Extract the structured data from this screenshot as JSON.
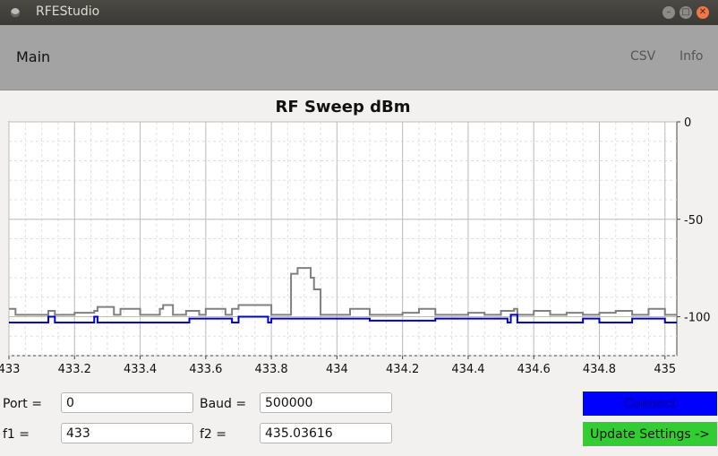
{
  "window": {
    "title": "RFEStudio"
  },
  "menu": {
    "main": "Main",
    "csv": "CSV",
    "info": "Info"
  },
  "fields": {
    "port_label": "Port =",
    "port_value": "0",
    "baud_label": "Baud =",
    "baud_value": "500000",
    "f1_label": "f1 =",
    "f1_value": "433",
    "f2_label": "f2 =",
    "f2_value": "435.03616"
  },
  "buttons": {
    "connect": "Connect",
    "update": "Update Settings ->"
  },
  "colors": {
    "connect": "#0000ff",
    "update": "#33cc33",
    "current": "#0000cc",
    "max": "#808080"
  },
  "chart_data": {
    "type": "line",
    "title": "RF Sweep dBm",
    "xlim": [
      433,
      435.03616
    ],
    "ylim": [
      -120,
      0
    ],
    "x_ticks": [
      433,
      433.2,
      433.4,
      433.6,
      433.8,
      434,
      434.2,
      434.4,
      434.6,
      434.8,
      435
    ],
    "x_tick_labels": [
      "433",
      "433.2",
      "433.4",
      "433.6",
      "433.8",
      "434",
      "434.2",
      "434.4",
      "434.6",
      "434.8",
      "435"
    ],
    "y_ticks": [
      0,
      -50,
      -100
    ],
    "y_tick_labels": [
      "0",
      "-50",
      "-100"
    ],
    "y_axis_side": "right",
    "grid": true,
    "series": [
      {
        "color": "#808080",
        "x": [
          433,
          433.02,
          433.1,
          433.12,
          433.14,
          433.2,
          433.26,
          433.27,
          433.32,
          433.34,
          433.4,
          433.46,
          433.47,
          433.5,
          433.54,
          433.58,
          433.6,
          433.66,
          433.68,
          433.7,
          433.8,
          433.85,
          433.86,
          433.88,
          433.92,
          433.93,
          433.95,
          434,
          434.04,
          434.1,
          434.2,
          434.25,
          434.3,
          434.4,
          434.45,
          434.5,
          434.54,
          434.55,
          434.6,
          434.65,
          434.7,
          434.75,
          434.8,
          434.85,
          434.9,
          434.95,
          435,
          435.03616
        ],
        "y": [
          -96,
          -99,
          -99,
          -97,
          -99,
          -98,
          -97,
          -95,
          -99,
          -96,
          -99,
          -96,
          -94,
          -99,
          -97,
          -99,
          -96,
          -99,
          -96,
          -94,
          -99,
          -99,
          -78,
          -75,
          -80,
          -86,
          -99,
          -99,
          -96,
          -99,
          -98,
          -96,
          -99,
          -98,
          -99,
          -97,
          -96,
          -99,
          -97,
          -99,
          -98,
          -99,
          -98,
          -97,
          -99,
          -96,
          -99,
          -99
        ]
      },
      {
        "color": "#0000cc",
        "x": [
          433,
          433.1,
          433.12,
          433.14,
          433.25,
          433.26,
          433.27,
          433.5,
          433.55,
          433.68,
          433.7,
          433.79,
          433.8,
          434.1,
          434.3,
          434.52,
          434.53,
          434.55,
          434.7,
          434.75,
          434.8,
          434.9,
          435,
          435.03616
        ],
        "y": [
          -103,
          -103,
          -100,
          -103,
          -103,
          -100,
          -103,
          -103,
          -101,
          -103,
          -100,
          -103,
          -101,
          -102,
          -101,
          -103,
          -99,
          -103,
          -103,
          -101,
          -103,
          -101,
          -103,
          -103
        ]
      }
    ]
  }
}
